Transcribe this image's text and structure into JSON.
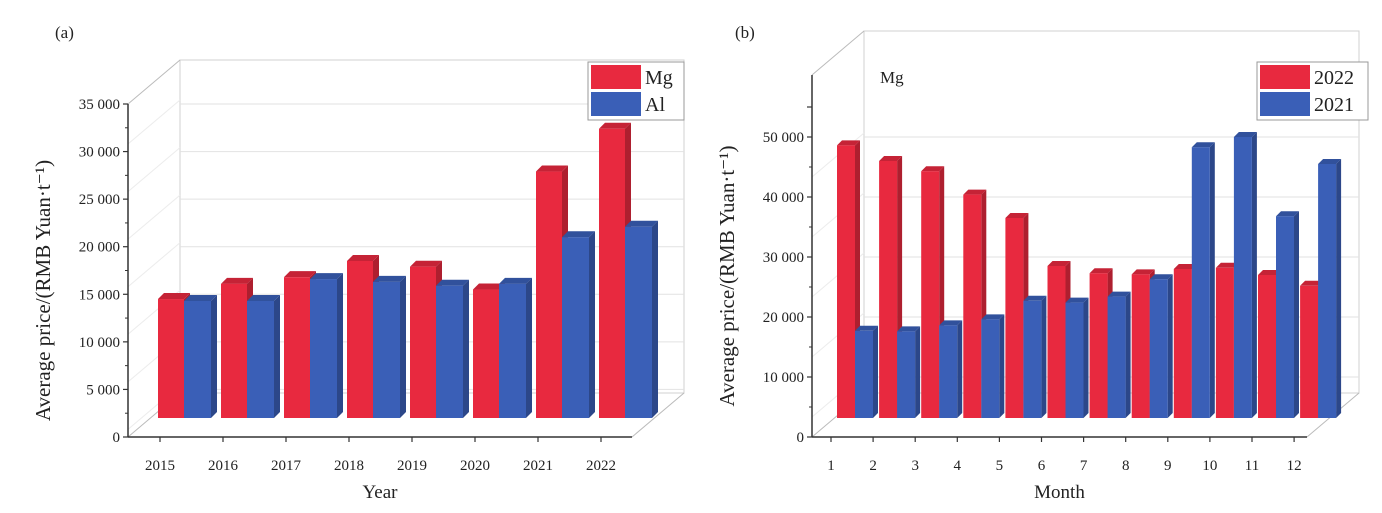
{
  "chart_data": [
    {
      "panel_label": "(a)",
      "type": "bar",
      "style": "3d-grouped",
      "xlabel": "Year",
      "ylabel": "Average price/(RMB Yuan·t⁻¹)",
      "ylim": [
        0,
        35000
      ],
      "yticks": [
        "0",
        "5 000",
        "10 000",
        "15 000",
        "20 000",
        "25 000",
        "30 000",
        "35 000"
      ],
      "categories": [
        "2015",
        "2016",
        "2017",
        "2018",
        "2019",
        "2020",
        "2021",
        "2022"
      ],
      "grid": true,
      "legend_position": "top-right",
      "series": [
        {
          "name": "Mg",
          "color": "#E8293F",
          "values": [
            14500,
            16100,
            16800,
            18500,
            17900,
            15500,
            27900,
            32400
          ]
        },
        {
          "name": "Al",
          "color": "#3A5FB7",
          "values": [
            14300,
            14300,
            16600,
            16300,
            15900,
            16100,
            21000,
            22100
          ]
        }
      ]
    },
    {
      "panel_label": "(b)",
      "type": "bar",
      "style": "3d-grouped",
      "annotation": "Mg",
      "xlabel": "Month",
      "ylabel": "Average price/(RMB Yuan·t⁻¹)",
      "ylim": [
        0,
        55000
      ],
      "yticks": [
        "0",
        "10 000",
        "20 000",
        "30 000",
        "40 000",
        "50 000"
      ],
      "categories": [
        "1",
        "2",
        "3",
        "4",
        "5",
        "6",
        "7",
        "8",
        "9",
        "10",
        "11",
        "12"
      ],
      "grid": true,
      "legend_position": "top-right",
      "series": [
        {
          "name": "2022",
          "color": "#E8293F",
          "values": [
            48600,
            46000,
            44300,
            40400,
            36500,
            28500,
            27300,
            27100,
            28000,
            28200,
            27000,
            25200
          ]
        },
        {
          "name": "2021",
          "color": "#3A5FB7",
          "values": [
            17700,
            17600,
            18600,
            19600,
            22700,
            22400,
            23400,
            26300,
            48300,
            50000,
            36800,
            45500
          ]
        }
      ]
    }
  ]
}
